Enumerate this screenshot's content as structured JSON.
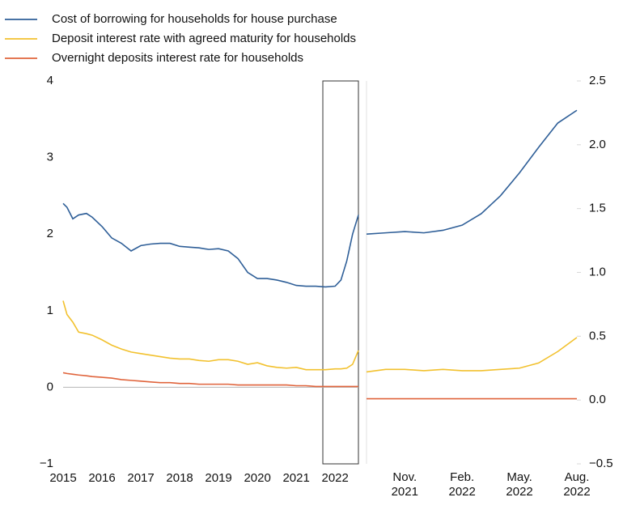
{
  "chart_data": [
    {
      "type": "line",
      "x": [
        2015.0,
        2015.1,
        2015.25,
        2015.4,
        2015.6,
        2015.75,
        2016.0,
        2016.25,
        2016.5,
        2016.75,
        2017.0,
        2017.25,
        2017.5,
        2017.75,
        2018.0,
        2018.25,
        2018.5,
        2018.75,
        2019.0,
        2019.25,
        2019.5,
        2019.75,
        2020.0,
        2020.25,
        2020.5,
        2020.75,
        2021.0,
        2021.25,
        2021.5,
        2021.75,
        2022.0,
        2022.15,
        2022.3,
        2022.45,
        2022.6
      ],
      "series": [
        {
          "name": "Cost of borrowing for households for house purchase",
          "color": "#2f5f98",
          "values": [
            2.4,
            2.35,
            2.2,
            2.25,
            2.27,
            2.22,
            2.1,
            1.95,
            1.88,
            1.78,
            1.85,
            1.87,
            1.88,
            1.88,
            1.84,
            1.83,
            1.82,
            1.8,
            1.81,
            1.78,
            1.68,
            1.5,
            1.42,
            1.42,
            1.4,
            1.37,
            1.33,
            1.32,
            1.32,
            1.31,
            1.32,
            1.4,
            1.65,
            2.0,
            2.25
          ]
        },
        {
          "name": "Deposit interest rate with agreed maturity for households",
          "color": "#f2c12e",
          "values": [
            1.13,
            0.95,
            0.85,
            0.72,
            0.7,
            0.68,
            0.62,
            0.55,
            0.5,
            0.46,
            0.44,
            0.42,
            0.4,
            0.38,
            0.37,
            0.37,
            0.35,
            0.34,
            0.36,
            0.36,
            0.34,
            0.3,
            0.32,
            0.28,
            0.26,
            0.25,
            0.26,
            0.23,
            0.23,
            0.23,
            0.24,
            0.24,
            0.25,
            0.3,
            0.48
          ]
        },
        {
          "name": "Overnight deposits interest rate for households",
          "color": "#e0643c",
          "values": [
            0.19,
            0.18,
            0.17,
            0.16,
            0.15,
            0.14,
            0.13,
            0.12,
            0.1,
            0.09,
            0.08,
            0.07,
            0.06,
            0.06,
            0.05,
            0.05,
            0.04,
            0.04,
            0.04,
            0.04,
            0.03,
            0.03,
            0.03,
            0.03,
            0.03,
            0.03,
            0.02,
            0.02,
            0.01,
            0.01,
            0.01,
            0.01,
            0.01,
            0.01,
            0.01
          ]
        }
      ],
      "xlim": [
        2015,
        2022.6
      ],
      "xticks": [
        2015,
        2016,
        2017,
        2018,
        2019,
        2020,
        2021,
        2022
      ],
      "ylim": [
        -1,
        4
      ],
      "yticks": [
        {
          "value": -1,
          "label": "−1"
        },
        0,
        1,
        2,
        3,
        4
      ]
    },
    {
      "type": "line",
      "categories": [
        null,
        null,
        "Nov.\n2021",
        null,
        null,
        "Feb.\n2022",
        null,
        null,
        "May.\n2022",
        null,
        null,
        "Aug.\n2022"
      ],
      "series": [
        {
          "color": "#2f5f98",
          "axis": "y2",
          "values": [
            1.3,
            1.31,
            1.32,
            1.31,
            1.33,
            1.37,
            1.46,
            1.6,
            1.78,
            1.98,
            2.17,
            2.27
          ]
        },
        {
          "color": "#f2c12e",
          "axis": "y2",
          "values": [
            0.22,
            0.24,
            0.24,
            0.23,
            0.24,
            0.23,
            0.23,
            0.24,
            0.25,
            0.29,
            0.38,
            0.49
          ]
        },
        {
          "color": "#e0643c",
          "axis": "y2",
          "values": [
            0.01,
            0.01,
            0.01,
            0.01,
            0.01,
            0.01,
            0.01,
            0.01,
            0.01,
            0.01,
            0.01,
            0.01
          ]
        }
      ],
      "y2lim": [
        -0.5,
        2.5
      ],
      "y2ticks": [
        {
          "value": -0.5,
          "label": "−0.5"
        },
        {
          "value": 0,
          "label": "0.0"
        },
        0.5,
        {
          "value": 1,
          "label": "1.0"
        },
        1.5,
        {
          "value": 2,
          "label": "2.0"
        },
        2.5
      ]
    }
  ]
}
